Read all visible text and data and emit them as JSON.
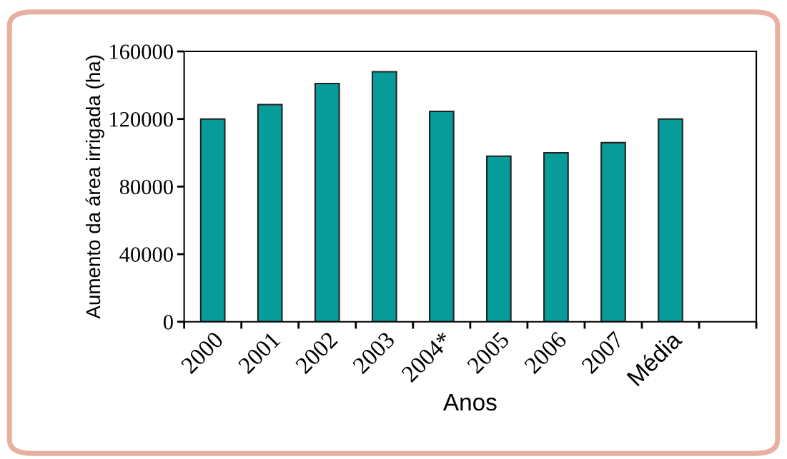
{
  "chart_data": {
    "type": "bar",
    "xlabel": "Anos",
    "ylabel": "Aumento da área irrigada (ha)",
    "categories": [
      "2000",
      "2001",
      "2002",
      "2003",
      "2004*",
      "2005",
      "2006",
      "2007",
      "Média",
      null
    ],
    "values": [
      120000,
      128500,
      141000,
      148000,
      124500,
      98000,
      100000,
      106000,
      120000,
      null
    ],
    "color": "#079c9a",
    "ylim": [
      0,
      160000
    ],
    "yticks": [
      0,
      40000,
      80000,
      120000,
      160000
    ],
    "grid": false
  }
}
